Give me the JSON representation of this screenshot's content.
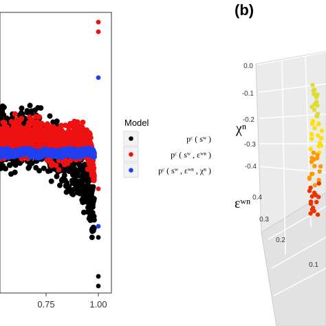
{
  "colors": {
    "black": "#000000",
    "red": "#ee1111",
    "blue": "#1f3ff0",
    "panel_bg": "#ebebeb",
    "grid": "#ffffff"
  },
  "panel_a": {
    "x_ticks": [
      "0.75",
      "1.00"
    ],
    "legend": {
      "title": "Model",
      "entries": [
        {
          "label": "pᶜ ( sʷ )",
          "color": "#000000"
        },
        {
          "label": "pᶜ ( sʷ , εʷⁿ )",
          "color": "#ee1111"
        },
        {
          "label": "pᶜ ( sʷ , εʷⁿ , χⁿ )",
          "color": "#1f3ff0"
        }
      ]
    }
  },
  "panel_b": {
    "tag": "(b)",
    "chi_label": "χⁿ",
    "eps_label": "εʷⁿ",
    "chi_ticks": [
      "0.0",
      "-0.1",
      "-0.2",
      "-0.3",
      "-0.4"
    ],
    "eps_ticks": [
      "0.4",
      "0.3",
      "0.2",
      "0.1"
    ]
  },
  "chart_data": [
    {
      "type": "scatter",
      "panel": "a",
      "x_ticks": [
        0.75,
        1.0
      ],
      "xlim": [
        0.5,
        1.03
      ],
      "ylim": [
        -1,
        1
      ],
      "legend_title": "Model",
      "legend_position": "right",
      "grid": false,
      "series": [
        {
          "name": "pᶜ(sʷ)",
          "color": "#000000",
          "points": [
            [
              0.5,
              0.1
            ],
            [
              0.55,
              0.12
            ],
            [
              0.6,
              0.08
            ],
            [
              0.65,
              0.14
            ],
            [
              0.7,
              0.1
            ],
            [
              0.75,
              0.06
            ],
            [
              0.8,
              0.02
            ],
            [
              0.85,
              -0.05
            ],
            [
              0.9,
              -0.12
            ],
            [
              0.95,
              -0.25
            ],
            [
              0.98,
              -0.45
            ],
            [
              1.0,
              -0.6
            ],
            [
              1.0,
              -0.88
            ],
            [
              1.0,
              -0.95
            ]
          ]
        },
        {
          "name": "pᶜ(sʷ, εʷⁿ)",
          "color": "#ee1111",
          "points": [
            [
              0.5,
              0.05
            ],
            [
              0.55,
              0.08
            ],
            [
              0.6,
              0.12
            ],
            [
              0.65,
              0.1
            ],
            [
              0.7,
              0.15
            ],
            [
              0.75,
              0.1
            ],
            [
              0.8,
              0.05
            ],
            [
              0.85,
              0.08
            ],
            [
              0.9,
              0.1
            ],
            [
              0.95,
              0.05
            ],
            [
              0.98,
              -0.1
            ],
            [
              1.0,
              0.95
            ],
            [
              1.0,
              0.88
            ],
            [
              1.0,
              -0.25
            ]
          ]
        },
        {
          "name": "pᶜ(sʷ, εʷⁿ, χⁿ)",
          "color": "#1f3ff0",
          "points": [
            [
              0.5,
              0.0
            ],
            [
              0.55,
              0.01
            ],
            [
              0.6,
              0.0
            ],
            [
              0.65,
              0.02
            ],
            [
              0.7,
              0.0
            ],
            [
              0.75,
              0.01
            ],
            [
              0.8,
              0.0
            ],
            [
              0.85,
              0.01
            ],
            [
              0.9,
              0.0
            ],
            [
              0.95,
              0.02
            ],
            [
              0.98,
              0.0
            ],
            [
              1.0,
              0.55
            ],
            [
              1.0,
              -0.52
            ]
          ]
        }
      ]
    },
    {
      "type": "scatter",
      "panel": "b",
      "chi_ticks": [
        0.0,
        -0.1,
        -0.2,
        -0.3,
        -0.4
      ],
      "eps_ticks": [
        0.4,
        0.3,
        0.2,
        0.1
      ],
      "colormap": [
        "#dddd33",
        "#ffe000",
        "#ff9900",
        "#ee3300"
      ]
    }
  ]
}
